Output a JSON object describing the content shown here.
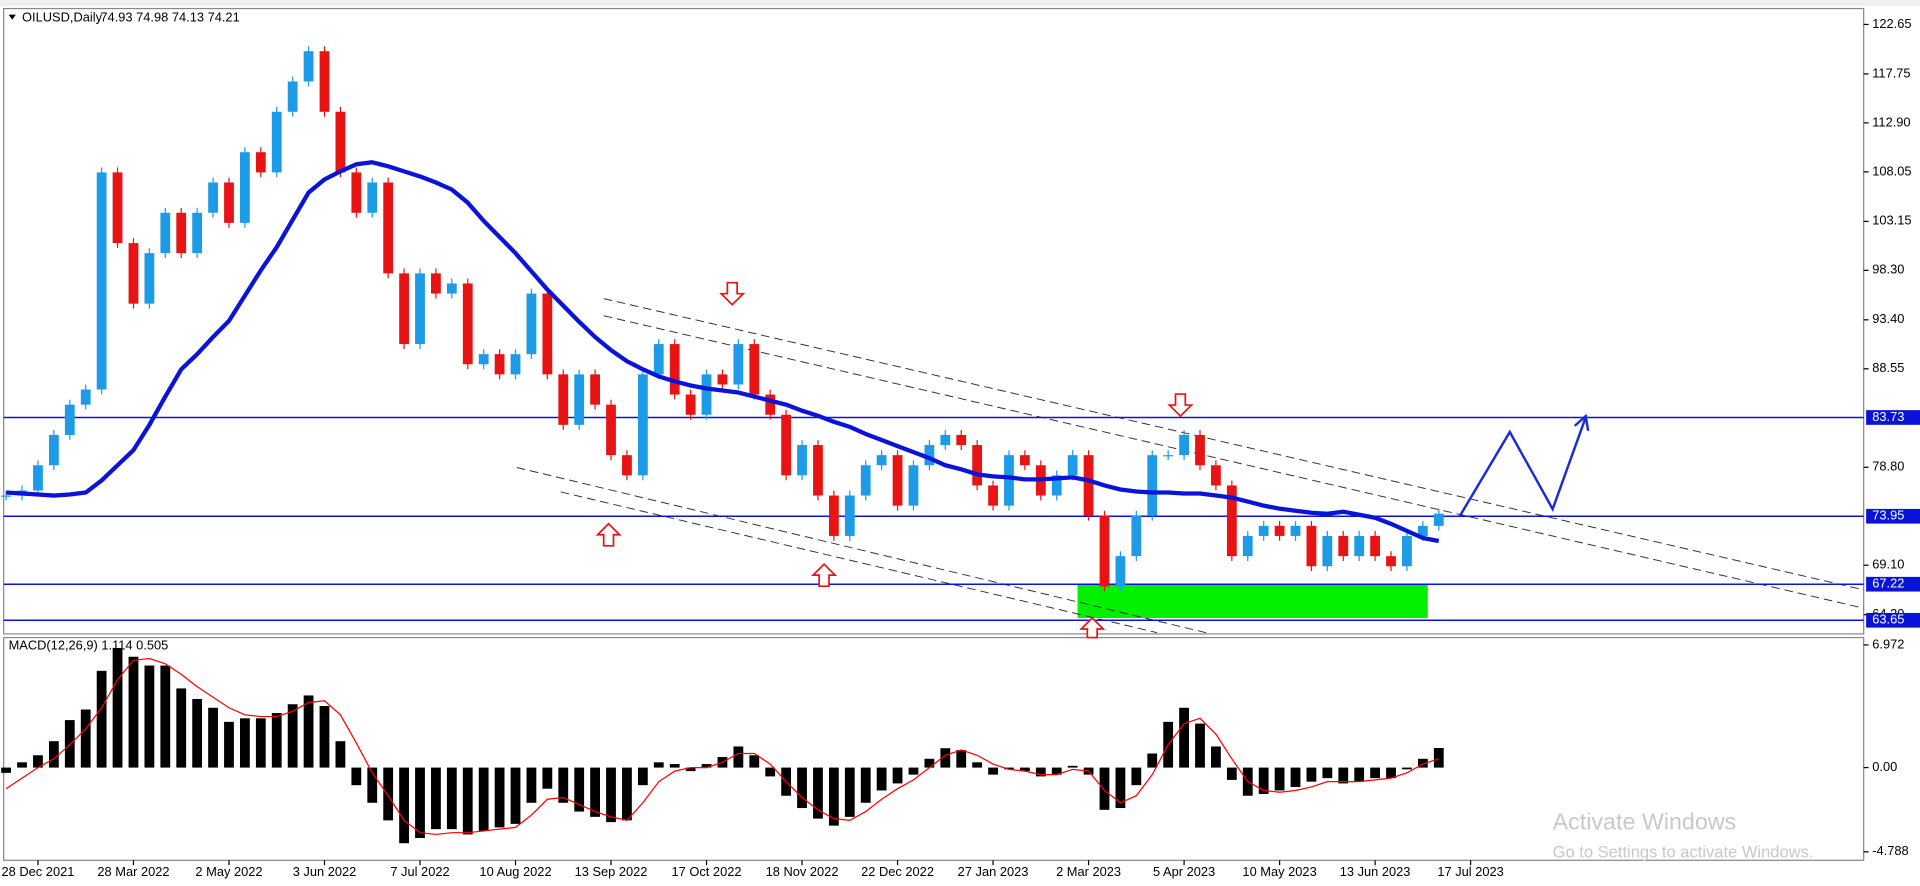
{
  "chart_data": {
    "type": "candlestick",
    "title": "OILUSD,Daily",
    "quote": "74.93 74.98 74.13 74.21",
    "categories": [
      "28 Dec 2021",
      "28 Mar 2022",
      "2 May 2022",
      "3 Jun 2022",
      "7 Jul 2022",
      "10 Aug 2022",
      "13 Sep 2022",
      "17 Oct 2022",
      "18 Nov 2022",
      "22 Dec 2022",
      "27 Jan 2023",
      "2 Mar 2023",
      "5 Apr 2023",
      "10 May 2023",
      "13 Jun 2023",
      "17 Jul 2023"
    ],
    "closes": [
      76,
      76.5,
      79,
      82,
      85,
      86.5,
      108,
      101,
      95,
      100,
      104,
      100,
      104,
      107,
      103,
      110,
      108,
      114,
      117,
      120,
      114,
      108,
      104,
      107,
      98,
      91,
      98,
      96,
      97,
      89,
      90,
      88,
      90,
      96,
      88,
      83,
      88,
      85,
      80,
      78,
      88,
      91,
      86,
      84,
      88,
      87,
      91,
      86,
      84,
      78,
      81,
      76,
      72,
      76,
      79,
      80,
      75,
      79,
      81,
      82,
      81,
      77,
      75,
      80,
      79,
      76,
      78,
      80,
      74,
      67,
      70,
      74,
      80,
      80,
      82,
      79,
      77,
      70,
      72,
      73,
      72,
      73,
      69,
      72,
      70,
      72,
      70,
      69,
      72,
      73,
      74.21
    ],
    "up_color": "#1e9be6",
    "down_color": "#e81414",
    "ma": {
      "color": "#0a14d8",
      "values": [
        76.3,
        76.2,
        76.1,
        76,
        76.1,
        76.3,
        77.5,
        79,
        80.5,
        83,
        85.8,
        88.5,
        90,
        91.7,
        93.3,
        95.8,
        98.3,
        100.6,
        103.3,
        106,
        107.3,
        108.1,
        108.8,
        109,
        108.6,
        108.1,
        107.6,
        107,
        106.3,
        105,
        103.2,
        101.6,
        100,
        98.2,
        96.4,
        94.8,
        93.2,
        91.7,
        90.4,
        89.3,
        88.5,
        87.8,
        87.3,
        86.9,
        86.6,
        86.4,
        86.2,
        85.8,
        85.4,
        85,
        84.4,
        83.9,
        83.3,
        82.8,
        82.1,
        81.5,
        80.9,
        80.3,
        79.7,
        79,
        78.6,
        78.1,
        77.9,
        77.8,
        77.6,
        77.6,
        77.7,
        77.8,
        77.5,
        77,
        76.6,
        76.4,
        76.3,
        76.3,
        76.2,
        76.2,
        76,
        75.8,
        75.4,
        75,
        74.7,
        74.5,
        74.3,
        74.2,
        74.4,
        74.1,
        73.8,
        73.2,
        72.5,
        71.8,
        71.5
      ]
    },
    "ylim": [
      62.3,
      124.1
    ],
    "yticks": [
      122.65,
      117.75,
      {
        "value": 112.9,
        "label": "112.90"
      },
      108.05,
      103.15,
      {
        "value": 98.3,
        "label": "98.30"
      },
      {
        "value": 93.4,
        "label": "93.40"
      },
      88.55,
      {
        "value": 78.8,
        "label": "78.80"
      },
      {
        "value": 69.1,
        "label": "69.10"
      },
      {
        "value": 64.2,
        "label": "64.20"
      }
    ],
    "levels": [
      83.73,
      73.95,
      67.22,
      63.65
    ],
    "level_color": "#0a14d8",
    "macd": {
      "label": "MACD(12,26,9) 1.114 0.505",
      "histogram": [
        -0.3,
        0.3,
        0.7,
        1.5,
        2.7,
        3.3,
        5.5,
        6.8,
        6.3,
        5.8,
        5.8,
        4.5,
        3.9,
        3.4,
        2.6,
        2.8,
        2.8,
        3.1,
        3.6,
        4.1,
        3.5,
        1.5,
        -1,
        -2,
        -3,
        -4.3,
        -4,
        -3.5,
        -3.5,
        -3.8,
        -3.6,
        -3.4,
        -3.2,
        -2,
        -1.2,
        -2,
        -2.5,
        -2.8,
        -3.1,
        -3,
        -1,
        0.3,
        0.2,
        -0.2,
        0.2,
        0.6,
        1.2,
        0.7,
        -0.5,
        -1.6,
        -2.3,
        -2.9,
        -3.3,
        -2.8,
        -2,
        -1.3,
        -0.9,
        -0.4,
        0.5,
        1.1,
        1,
        0.3,
        -0.4,
        -0.1,
        -0.2,
        -0.5,
        -0.4,
        0.1,
        -0.4,
        -2.4,
        -2.3,
        -1,
        0.8,
        2.6,
        3.4,
        2.5,
        1.2,
        -0.7,
        -1.6,
        -1.5,
        -1.3,
        -1.1,
        -0.8,
        -0.6,
        -0.9,
        -0.8,
        -0.6,
        -0.6,
        -0.1,
        0.5,
        1.114
      ],
      "signal": [
        -1.2,
        -0.6,
        0,
        0.5,
        1.3,
        2.2,
        3.4,
        5,
        6.1,
        6.2,
        5.9,
        5.3,
        4.6,
        4,
        3.4,
        3,
        2.9,
        2.9,
        3.2,
        3.7,
        3.8,
        3,
        1.4,
        -0.3,
        -1.6,
        -3,
        -3.7,
        -3.8,
        -3.7,
        -3.7,
        -3.6,
        -3.5,
        -3.4,
        -2.7,
        -1.8,
        -1.7,
        -2.1,
        -2.5,
        -2.8,
        -3,
        -2,
        -0.8,
        -0.2,
        0,
        0,
        0.3,
        0.8,
        0.8,
        0.2,
        -0.8,
        -1.7,
        -2.4,
        -2.9,
        -3,
        -2.5,
        -1.8,
        -1.2,
        -0.7,
        0,
        0.7,
        1,
        0.7,
        0.2,
        -0.1,
        -0.2,
        -0.4,
        -0.4,
        -0.1,
        -0.2,
        -1.3,
        -2,
        -1.6,
        -0.4,
        1.3,
        2.5,
        2.8,
        1.9,
        0.5,
        -0.8,
        -1.3,
        -1.4,
        -1.3,
        -1.1,
        -0.8,
        -0.8,
        -0.8,
        -0.7,
        -0.6,
        -0.3,
        0.2,
        0.505
      ],
      "histogram_color": "#000000",
      "signal_color": "#ff0000",
      "ylim": [
        -5.27,
        7.39
      ],
      "yticks": [
        6.972,
        {
          "value": 0,
          "label": "0.00"
        },
        -4.788
      ]
    },
    "watermark": [
      "Activate Windows",
      "Go to Settings to activate Windows."
    ]
  }
}
